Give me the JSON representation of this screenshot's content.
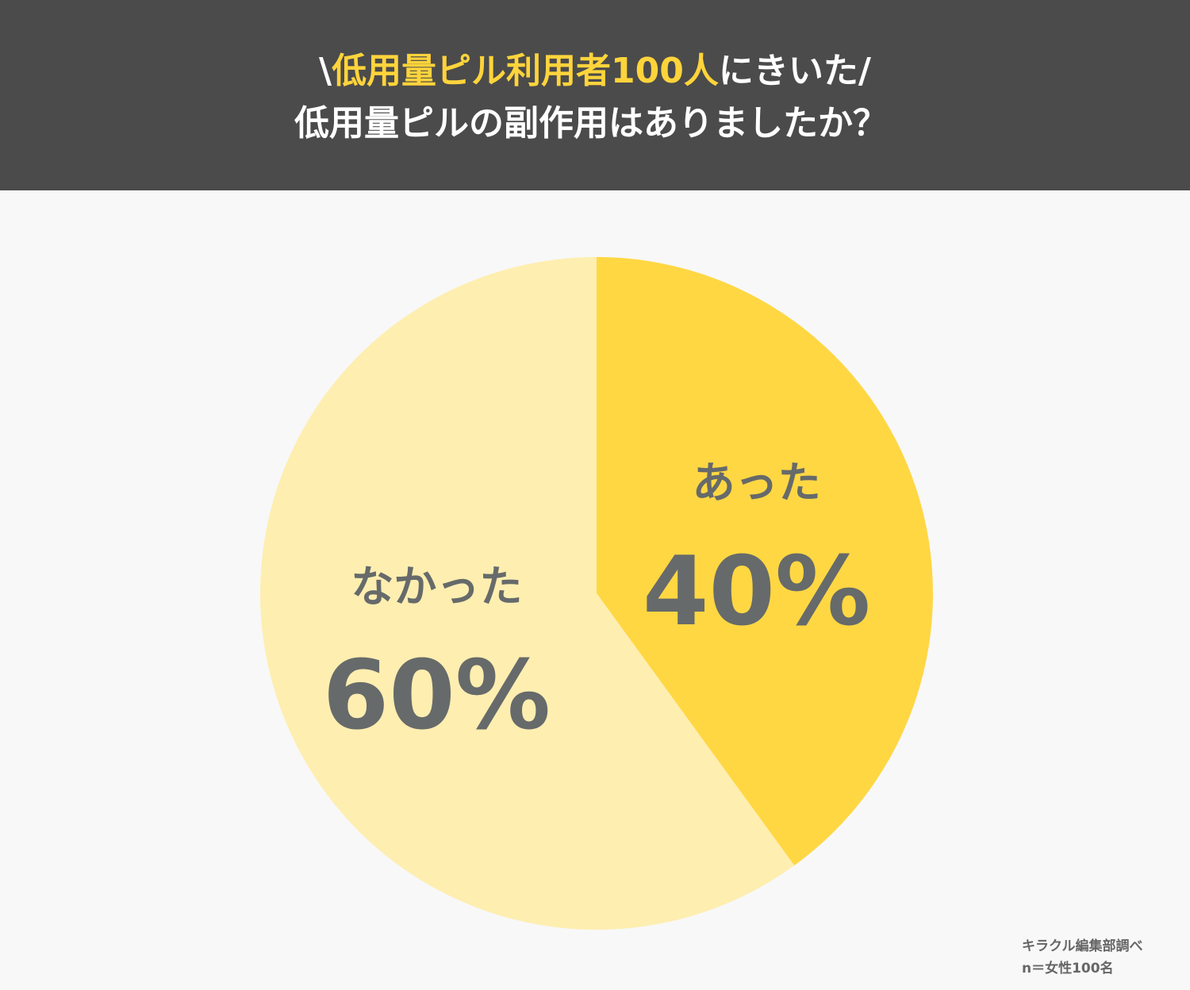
{
  "chart_data": {
    "type": "pie",
    "title_parts": [
      "\\",
      "低用量ピル利用者100人",
      "にきいた/"
    ],
    "subtitle": "低用量ピルの副作用はありましたか？",
    "categories": [
      "あった",
      "なかった"
    ],
    "values": [
      40,
      60
    ],
    "value_labels": [
      "40%",
      "60%"
    ],
    "colors": [
      "#ffd743",
      "#feeeb0"
    ],
    "source": "キラクル編集部調べ",
    "sample": "n＝女性100名"
  }
}
